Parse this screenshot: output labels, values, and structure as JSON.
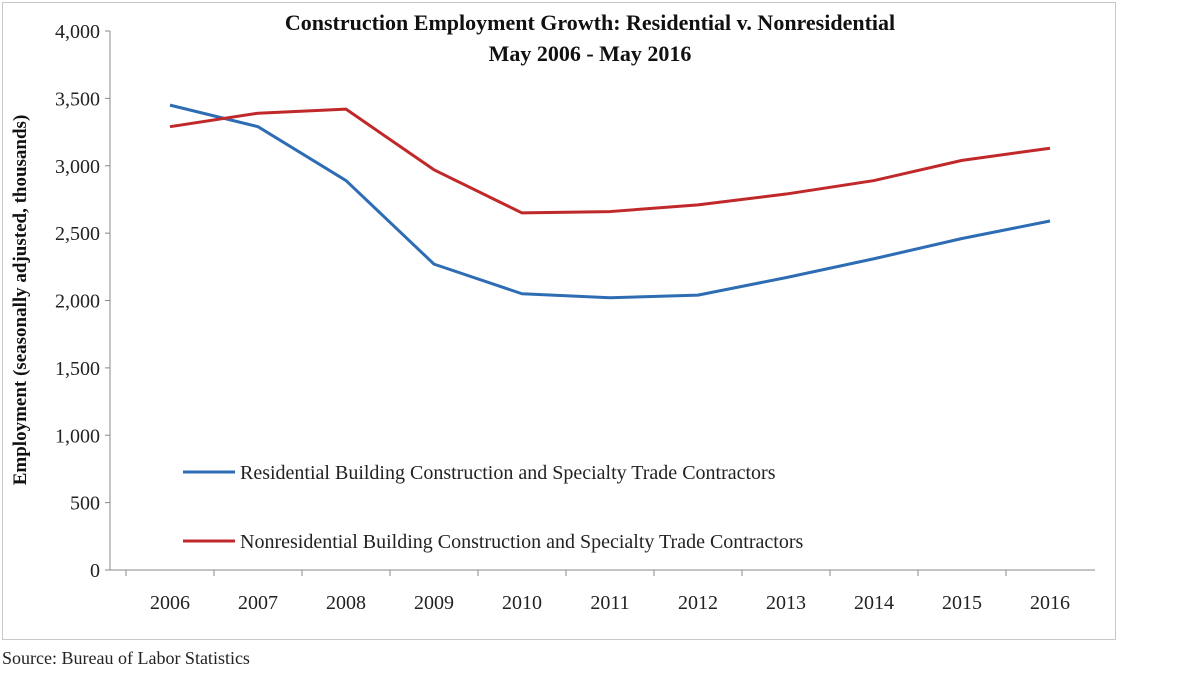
{
  "chart_data": {
    "type": "line",
    "title": "Construction Employment Growth:  Residential v. Nonresidential",
    "subtitle": "May 2006 - May 2016",
    "xlabel": "",
    "ylabel": "Employment (seasonally adjusted, thousands)",
    "x": [
      "2006",
      "2007",
      "2008",
      "2009",
      "2010",
      "2011",
      "2012",
      "2013",
      "2014",
      "2015",
      "2016"
    ],
    "ylim": [
      0,
      4000
    ],
    "yticks": [
      "0",
      "500",
      "1,000",
      "1,500",
      "2,000",
      "2,500",
      "3,000",
      "3,500",
      "4,000"
    ],
    "grid": false,
    "legend_position": "bottom-left inside",
    "series": [
      {
        "name": "Residential Building Construction and Specialty Trade Contractors",
        "color": "#2e6db4",
        "values": [
          3450,
          3290,
          2890,
          2270,
          2050,
          2020,
          2040,
          2170,
          2310,
          2460,
          2590
        ]
      },
      {
        "name": "Nonresidential Building Construction and Specialty Trade Contractors",
        "color": "#c0282a",
        "values": [
          3290,
          3390,
          3420,
          2970,
          2650,
          2660,
          2710,
          2790,
          2890,
          3040,
          3130
        ]
      }
    ],
    "source": "Source:  Bureau of Labor Statistics"
  }
}
